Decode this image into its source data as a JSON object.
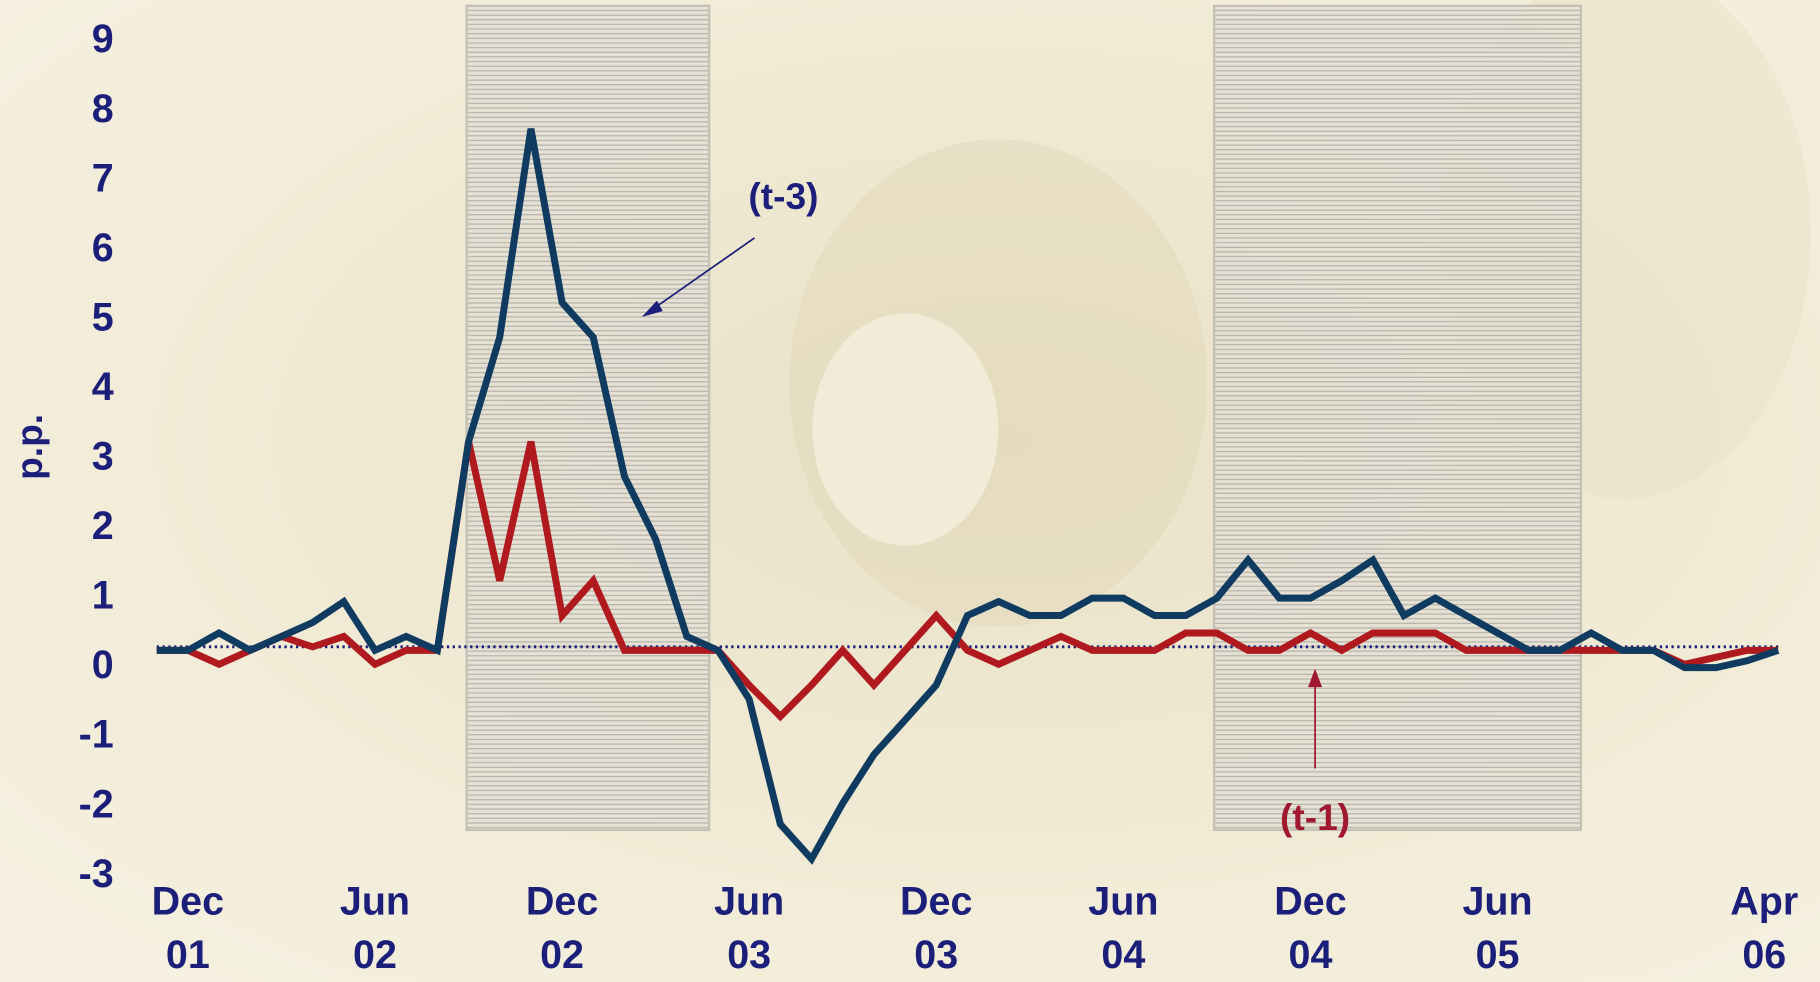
{
  "chart_data": {
    "type": "line",
    "y_label": "p.p.",
    "categories": [
      null,
      "Dec\n01",
      null,
      null,
      null,
      null,
      null,
      "Jun\n02",
      null,
      null,
      null,
      null,
      null,
      "Dec\n02",
      null,
      null,
      null,
      null,
      null,
      "Jun\n03",
      null,
      null,
      null,
      null,
      null,
      "Dec\n03",
      null,
      null,
      null,
      null,
      null,
      "Jun\n04",
      null,
      null,
      null,
      null,
      null,
      "Dec\n04",
      null,
      null,
      null,
      null,
      null,
      "Jun\n05",
      null,
      null,
      null,
      null,
      null,
      null,
      null,
      null,
      "Apr\n06"
    ],
    "series": [
      {
        "name": "(t-1)",
        "color": "#b01a1e",
        "values": [
          0.2,
          0.2,
          0.0,
          0.2,
          0.4,
          0.25,
          0.4,
          0.0,
          0.2,
          0.2,
          3.2,
          1.2,
          3.2,
          0.7,
          1.2,
          0.2,
          0.2,
          0.2,
          0.2,
          -0.3,
          -0.75,
          -0.3,
          0.2,
          -0.3,
          0.2,
          0.7,
          0.2,
          0.0,
          0.2,
          0.4,
          0.2,
          0.2,
          0.2,
          0.45,
          0.45,
          0.2,
          0.2,
          0.45,
          0.2,
          0.45,
          0.45,
          0.45,
          0.2,
          0.2,
          0.2,
          0.2,
          0.2,
          0.2,
          0.2,
          0.0,
          0.1,
          0.2,
          0.2
        ]
      },
      {
        "name": "(t-3)",
        "color": "#0f3b60",
        "values": [
          0.2,
          0.2,
          0.45,
          0.2,
          0.4,
          0.6,
          0.9,
          0.2,
          0.4,
          0.2,
          3.2,
          4.7,
          7.7,
          5.2,
          4.7,
          2.7,
          1.8,
          0.4,
          0.2,
          -0.5,
          -2.3,
          -2.8,
          -2.0,
          -1.3,
          -0.8,
          -0.3,
          0.7,
          0.9,
          0.7,
          0.7,
          0.95,
          0.95,
          0.7,
          0.7,
          0.95,
          1.5,
          0.95,
          0.95,
          1.2,
          1.5,
          0.7,
          0.95,
          0.7,
          0.45,
          0.2,
          0.2,
          0.45,
          0.2,
          0.2,
          -0.05,
          -0.05,
          0.05,
          0.2
        ]
      }
    ],
    "reference_line": 0.25,
    "ylim": [
      -3,
      9
    ],
    "yticks": [
      -3,
      -2,
      -1,
      0,
      1,
      2,
      3,
      4,
      5,
      6,
      7,
      8,
      9
    ]
  }
}
